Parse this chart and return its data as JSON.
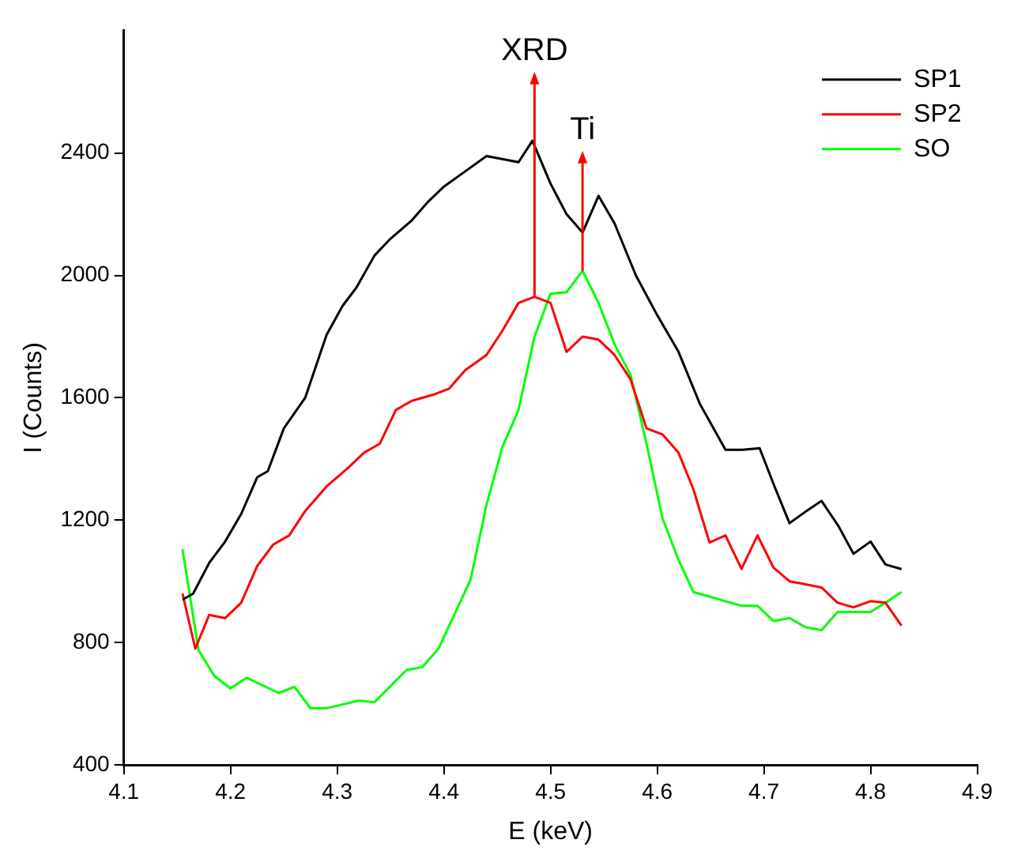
{
  "chart_data": {
    "type": "line",
    "xlabel": "E (keV)",
    "ylabel": "I (Counts)",
    "xlim": [
      4.1,
      4.9
    ],
    "xticks": [
      4.1,
      4.2,
      4.3,
      4.4,
      4.5,
      4.6,
      4.7,
      4.8,
      4.9
    ],
    "ylim": [
      400,
      2800
    ],
    "yticks": [
      400,
      800,
      1200,
      1600,
      2000,
      2400
    ],
    "grid": false,
    "legend": "top right",
    "marker": "none",
    "line_style": "solid",
    "series": [
      {
        "name": "SP1",
        "color": "#000000",
        "x": [
          4.155,
          4.165,
          4.18,
          4.195,
          4.21,
          4.225,
          4.235,
          4.25,
          4.27,
          4.29,
          4.305,
          4.318,
          4.335,
          4.35,
          4.37,
          4.385,
          4.4,
          4.42,
          4.44,
          4.47,
          4.483,
          4.5,
          4.515,
          4.53,
          4.545,
          4.56,
          4.58,
          4.6,
          4.62,
          4.64,
          4.664,
          4.68,
          4.696,
          4.71,
          4.724,
          4.74,
          4.754,
          4.77,
          4.784,
          4.8,
          4.814,
          4.829
        ],
        "values": [
          940,
          960,
          1060,
          1130,
          1220,
          1340,
          1360,
          1500,
          1600,
          1805,
          1900,
          1960,
          2065,
          2120,
          2180,
          2240,
          2290,
          2340,
          2390,
          2370,
          2440,
          2300,
          2200,
          2140,
          2260,
          2170,
          2000,
          1870,
          1750,
          1580,
          1430,
          1430,
          1435,
          1310,
          1190,
          1230,
          1263,
          1180,
          1090,
          1130,
          1055,
          1040
        ]
      },
      {
        "name": "SP2",
        "color": "#ff0000",
        "x": [
          4.155,
          4.167,
          4.18,
          4.195,
          4.21,
          4.225,
          4.24,
          4.255,
          4.27,
          4.29,
          4.31,
          4.325,
          4.34,
          4.355,
          4.37,
          4.39,
          4.405,
          4.42,
          4.44,
          4.455,
          4.47,
          4.485,
          4.5,
          4.515,
          4.53,
          4.545,
          4.56,
          4.575,
          4.59,
          4.605,
          4.62,
          4.634,
          4.649,
          4.664,
          4.679,
          4.694,
          4.709,
          4.724,
          4.739,
          4.754,
          4.769,
          4.784,
          4.8,
          4.814,
          4.829
        ],
        "values": [
          960,
          780,
          890,
          880,
          930,
          1050,
          1120,
          1150,
          1230,
          1310,
          1370,
          1420,
          1450,
          1560,
          1590,
          1610,
          1630,
          1690,
          1740,
          1820,
          1910,
          1930,
          1910,
          1750,
          1800,
          1790,
          1740,
          1660,
          1500,
          1480,
          1420,
          1300,
          1127,
          1150,
          1040,
          1150,
          1045,
          1000,
          990,
          980,
          930,
          915,
          935,
          930,
          855
        ]
      },
      {
        "name": "SO",
        "color": "#00ff00",
        "x": [
          4.155,
          4.17,
          4.185,
          4.2,
          4.215,
          4.245,
          4.26,
          4.275,
          4.29,
          4.32,
          4.335,
          4.365,
          4.38,
          4.395,
          4.425,
          4.44,
          4.455,
          4.47,
          4.485,
          4.5,
          4.515,
          4.53,
          4.545,
          4.56,
          4.575,
          4.59,
          4.605,
          4.62,
          4.634,
          4.649,
          4.664,
          4.679,
          4.694,
          4.709,
          4.724,
          4.739,
          4.754,
          4.769,
          4.784,
          4.8,
          4.814,
          4.829
        ],
        "values": [
          1105,
          775,
          690,
          650,
          685,
          635,
          655,
          585,
          585,
          610,
          605,
          710,
          720,
          780,
          1005,
          1250,
          1440,
          1560,
          1800,
          1940,
          1945,
          2015,
          1910,
          1775,
          1675,
          1450,
          1205,
          1070,
          965,
          950,
          935,
          920,
          920,
          870,
          880,
          850,
          840,
          900,
          900,
          900,
          930,
          965
        ]
      }
    ],
    "annotations": [
      {
        "text": "XRD",
        "x": 4.485,
        "y": 1930
      },
      {
        "text": "Ti",
        "x": 4.53,
        "y": 2015
      }
    ]
  }
}
